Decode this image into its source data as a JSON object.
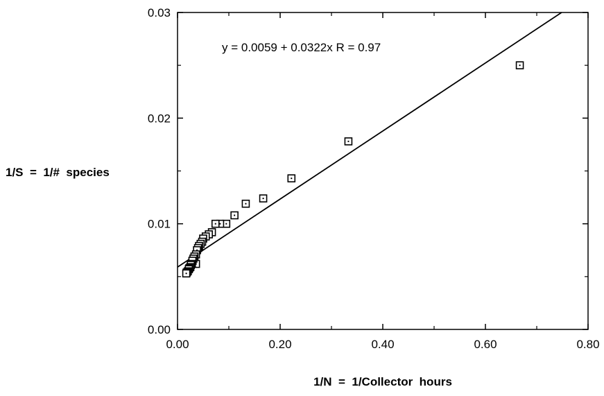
{
  "chart_data": {
    "type": "scatter",
    "xlabel": "1/N  =  1/Collector  hours",
    "ylabel": "1/S  =  1/#  species",
    "annotation": "y = 0.0059 + 0.0322x   R = 0.97",
    "xlim": [
      0.0,
      0.8
    ],
    "ylim": [
      0.0,
      0.03
    ],
    "x_ticks": [
      {
        "value": 0.0,
        "label": "0.00"
      },
      {
        "value": 0.2,
        "label": "0.20"
      },
      {
        "value": 0.4,
        "label": "0.40"
      },
      {
        "value": 0.6,
        "label": "0.60"
      },
      {
        "value": 0.8,
        "label": "0.80"
      }
    ],
    "y_ticks": [
      {
        "value": 0.0,
        "label": "0.00"
      },
      {
        "value": 0.01,
        "label": "0.01"
      },
      {
        "value": 0.02,
        "label": "0.02"
      },
      {
        "value": 0.03,
        "label": "0.03"
      }
    ],
    "x_minor_step": 0.1,
    "y_minor_step": 0.005,
    "points": [
      {
        "x": 0.667,
        "y": 0.025
      },
      {
        "x": 0.333,
        "y": 0.0178
      },
      {
        "x": 0.222,
        "y": 0.0143
      },
      {
        "x": 0.167,
        "y": 0.0124
      },
      {
        "x": 0.133,
        "y": 0.0119
      },
      {
        "x": 0.111,
        "y": 0.0108
      },
      {
        "x": 0.095,
        "y": 0.01
      },
      {
        "x": 0.083,
        "y": 0.01
      },
      {
        "x": 0.074,
        "y": 0.01
      },
      {
        "x": 0.067,
        "y": 0.0092
      },
      {
        "x": 0.061,
        "y": 0.009
      },
      {
        "x": 0.055,
        "y": 0.0088
      },
      {
        "x": 0.05,
        "y": 0.0086
      },
      {
        "x": 0.048,
        "y": 0.0083
      },
      {
        "x": 0.045,
        "y": 0.0081
      },
      {
        "x": 0.042,
        "y": 0.0079
      },
      {
        "x": 0.04,
        "y": 0.0077
      },
      {
        "x": 0.038,
        "y": 0.0075
      },
      {
        "x": 0.036,
        "y": 0.0071
      },
      {
        "x": 0.036,
        "y": 0.0062
      },
      {
        "x": 0.033,
        "y": 0.0069
      },
      {
        "x": 0.031,
        "y": 0.0067
      },
      {
        "x": 0.029,
        "y": 0.0065
      },
      {
        "x": 0.028,
        "y": 0.0062
      },
      {
        "x": 0.026,
        "y": 0.0061
      },
      {
        "x": 0.025,
        "y": 0.0059
      },
      {
        "x": 0.023,
        "y": 0.0058
      },
      {
        "x": 0.022,
        "y": 0.0057
      },
      {
        "x": 0.02,
        "y": 0.0055
      },
      {
        "x": 0.018,
        "y": 0.0054
      },
      {
        "x": 0.017,
        "y": 0.0053
      }
    ],
    "regression": {
      "intercept": 0.0059,
      "slope": 0.0322
    }
  }
}
